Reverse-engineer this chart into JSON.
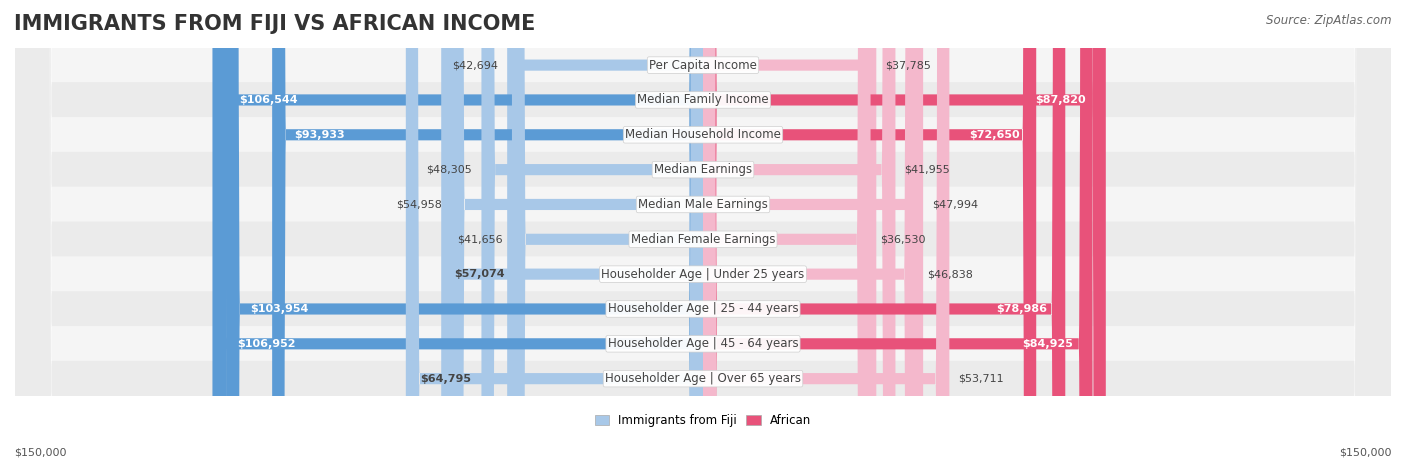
{
  "title": "IMMIGRANTS FROM FIJI VS AFRICAN INCOME",
  "source": "Source: ZipAtlas.com",
  "categories": [
    "Per Capita Income",
    "Median Family Income",
    "Median Household Income",
    "Median Earnings",
    "Median Male Earnings",
    "Median Female Earnings",
    "Householder Age | Under 25 years",
    "Householder Age | 25 - 44 years",
    "Householder Age | 45 - 64 years",
    "Householder Age | Over 65 years"
  ],
  "fiji_values": [
    42694,
    106544,
    93933,
    48305,
    54958,
    41656,
    57074,
    103954,
    106952,
    64795
  ],
  "african_values": [
    37785,
    87820,
    72650,
    41955,
    47994,
    36530,
    46838,
    78986,
    84925,
    53711
  ],
  "max_val": 150000,
  "fiji_color_light": "#a8c8e8",
  "fiji_color_dark": "#5b9bd5",
  "african_color_light": "#f4b8cc",
  "african_color_dark": "#e8527a",
  "row_bg_light": "#f5f5f5",
  "row_bg_dark": "#ebebeb",
  "title_fontsize": 15,
  "label_fontsize": 8.5,
  "value_fontsize": 8.0,
  "legend_fontsize": 8.5,
  "source_fontsize": 8.5
}
